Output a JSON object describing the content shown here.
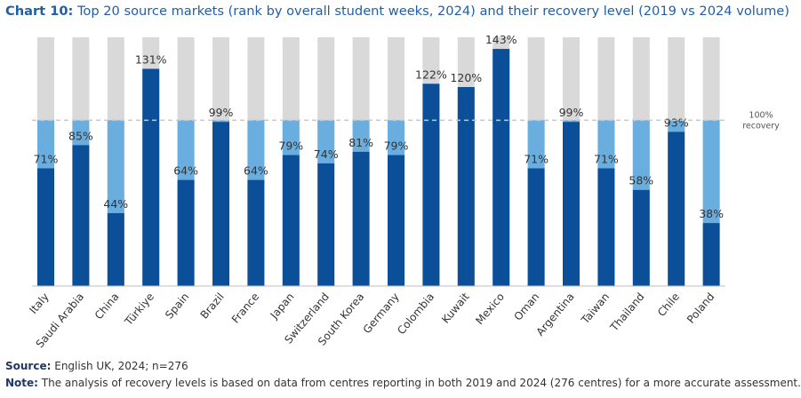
{
  "header": {
    "label": "Chart 10:",
    "text": "Top 20 source markets (rank by overall student weeks, 2024) and their recovery level (2019 vs 2024 volume)"
  },
  "chart_data": {
    "type": "bar",
    "title": "Top 20 source markets (rank by overall student weeks, 2024) and their recovery level (2019 vs 2024 volume)",
    "categories": [
      "Italy",
      "Saudi Arabia",
      "China",
      "Türkiye",
      "Spain",
      "Brazil",
      "France",
      "Japan",
      "Switzerland",
      "South Korea",
      "Germany",
      "Colombia",
      "Kuwait",
      "Mexico",
      "Oman",
      "Argentina",
      "Taiwan",
      "Thailand",
      "Chile",
      "Poland"
    ],
    "values": [
      71,
      85,
      44,
      131,
      64,
      99,
      64,
      79,
      74,
      81,
      79,
      122,
      120,
      143,
      71,
      99,
      71,
      58,
      93,
      38
    ],
    "value_suffix": "%",
    "reference_line": {
      "value": 100,
      "label_line1": "100%",
      "label_line2": "recovery"
    },
    "ylim": [
      0,
      150
    ],
    "xlabel": "",
    "ylabel": "",
    "series_meaning": {
      "dark_blue": "2024 volume as % of 2019",
      "light_blue": "shortfall below 100% recovery",
      "grey": "background to 150%"
    }
  },
  "colors": {
    "dark_blue": "#0a4f98",
    "light_blue": "#6aaee0",
    "grey_bg": "#d9d9d9",
    "reference": "#c8c8c8",
    "title": "#1f5fa8",
    "text": "#333333"
  },
  "footer": {
    "source_label": "Source:",
    "source_text": "English UK, 2024; n=276",
    "note_label": "Note:",
    "note_text": "The analysis of recovery levels is based on data from centres reporting in both 2019 and 2024 (276 centres) for a more accurate assessment."
  }
}
